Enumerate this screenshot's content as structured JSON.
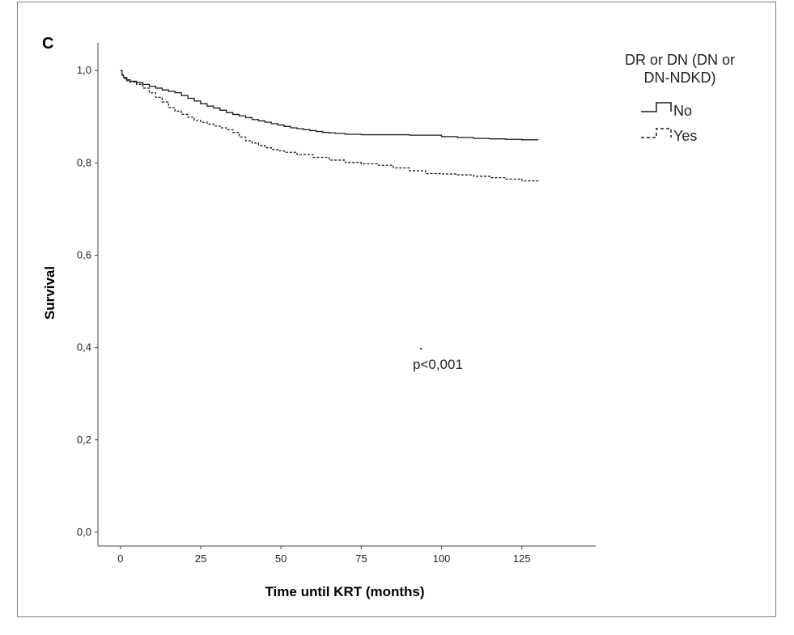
{
  "chart_data": {
    "type": "line",
    "panel_label": "C",
    "xlabel": "Time until KRT (months)",
    "ylabel": "Survival",
    "xlim": [
      -7,
      148
    ],
    "ylim": [
      -0.03,
      1.06
    ],
    "x_ticks": [
      0,
      25,
      50,
      75,
      100,
      125
    ],
    "x_tick_labels": [
      "0",
      "25",
      "50",
      "75",
      "100",
      "125"
    ],
    "y_ticks": [
      0.0,
      0.2,
      0.4,
      0.6,
      0.8,
      1.0
    ],
    "y_tick_labels": [
      "0,0",
      "0,2",
      "0,4",
      "0,6",
      "0,8",
      "1,0"
    ],
    "legend": {
      "title_lines": [
        "DR or DN (DN or",
        "DN-NDKD)"
      ],
      "placement": "top-right outside plot"
    },
    "annotation": "p<0,001",
    "series": [
      {
        "name": "No",
        "style": "solid",
        "color": "#1a1a1a",
        "x": [
          0,
          0.5,
          1,
          2,
          3,
          5,
          7,
          9,
          11,
          13,
          15,
          17,
          19,
          21,
          23,
          25,
          27,
          29,
          31,
          33,
          35,
          37,
          39,
          41,
          43,
          45,
          47,
          49,
          51,
          53,
          55,
          57,
          59,
          61,
          63,
          65,
          67,
          70,
          75,
          80,
          85,
          90,
          95,
          100,
          105,
          110,
          115,
          120,
          125,
          130
        ],
        "y": [
          1.0,
          0.99,
          0.985,
          0.98,
          0.977,
          0.974,
          0.97,
          0.966,
          0.962,
          0.958,
          0.955,
          0.952,
          0.946,
          0.94,
          0.934,
          0.928,
          0.923,
          0.919,
          0.914,
          0.909,
          0.905,
          0.902,
          0.898,
          0.894,
          0.891,
          0.888,
          0.885,
          0.882,
          0.879,
          0.876,
          0.874,
          0.872,
          0.87,
          0.868,
          0.866,
          0.865,
          0.864,
          0.862,
          0.861,
          0.861,
          0.861,
          0.86,
          0.86,
          0.857,
          0.855,
          0.853,
          0.852,
          0.851,
          0.85,
          0.849
        ]
      },
      {
        "name": "Yes",
        "style": "dashed",
        "color": "#1a1a1a",
        "x": [
          0,
          0.5,
          1,
          2,
          3,
          5,
          7,
          9,
          11,
          13,
          15,
          17,
          19,
          21,
          23,
          25,
          27,
          29,
          31,
          33,
          35,
          37,
          39,
          41,
          43,
          45,
          47,
          49,
          51,
          55,
          60,
          65,
          70,
          75,
          80,
          85,
          90,
          95,
          100,
          105,
          110,
          115,
          120,
          125,
          130
        ],
        "y": [
          1.0,
          0.988,
          0.982,
          0.978,
          0.975,
          0.97,
          0.962,
          0.952,
          0.942,
          0.932,
          0.92,
          0.912,
          0.905,
          0.899,
          0.892,
          0.888,
          0.884,
          0.88,
          0.876,
          0.872,
          0.866,
          0.856,
          0.848,
          0.843,
          0.838,
          0.833,
          0.829,
          0.826,
          0.823,
          0.818,
          0.812,
          0.806,
          0.801,
          0.798,
          0.795,
          0.789,
          0.783,
          0.777,
          0.776,
          0.774,
          0.771,
          0.768,
          0.765,
          0.761,
          0.757
        ]
      }
    ]
  }
}
